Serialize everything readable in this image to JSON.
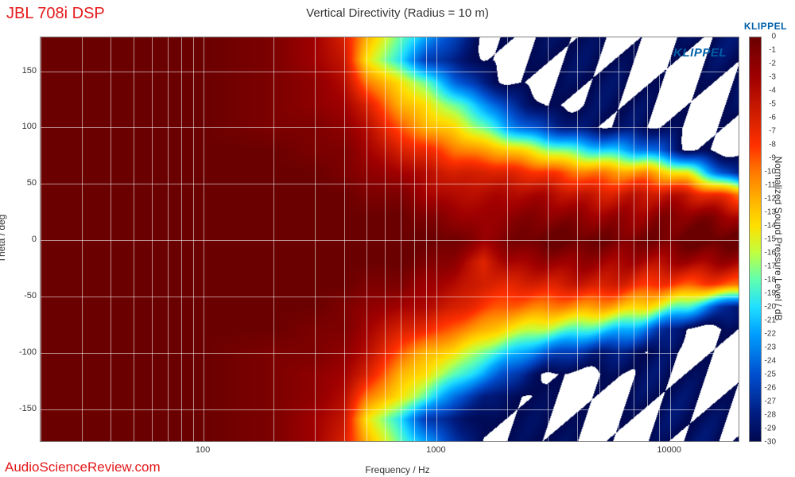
{
  "header": {
    "title_left": "JBL 708i DSP",
    "title_left_color": "#e41a1c",
    "title_center": "Vertical Directivity (Radius = 10 m)",
    "brand_right": "KLIPPEL",
    "brand_color": "#0060a8",
    "watermark_in_plot": "KLIPPEL"
  },
  "footer": {
    "text": "AudioScienceReview.com",
    "color": "#e41a1c"
  },
  "chart": {
    "type": "heatmap",
    "x_axis": {
      "label": "Frequency / Hz",
      "scale": "log",
      "min": 20,
      "max": 20000,
      "major_ticks": [
        100,
        1000,
        10000
      ],
      "minor_ticks": [
        20,
        30,
        40,
        50,
        60,
        70,
        80,
        90,
        200,
        300,
        400,
        500,
        600,
        700,
        800,
        900,
        2000,
        3000,
        4000,
        5000,
        6000,
        7000,
        8000,
        9000,
        20000
      ],
      "label_fontsize": 12,
      "tick_fontsize": 11
    },
    "y_axis": {
      "label": "Theta / deg",
      "scale": "linear",
      "min": -180,
      "max": 180,
      "ticks": [
        -150,
        -100,
        -50,
        0,
        50,
        100,
        150
      ],
      "label_fontsize": 12,
      "tick_fontsize": 11
    },
    "colorbar": {
      "label": "Normalized Sound Pressure Level / dB",
      "min": -30,
      "max": 0,
      "ticks": [
        0,
        -1,
        -2,
        -3,
        -4,
        -5,
        -6,
        -7,
        -8,
        -9,
        -10,
        -11,
        -12,
        -13,
        -14,
        -15,
        -16,
        -17,
        -18,
        -19,
        -20,
        -21,
        -22,
        -23,
        -24,
        -25,
        -26,
        -27,
        -28,
        -29,
        -30
      ],
      "stops": [
        {
          "v": 0,
          "c": "#6b0000"
        },
        {
          "v": -3,
          "c": "#a00000"
        },
        {
          "v": -6,
          "c": "#d62000"
        },
        {
          "v": -8,
          "c": "#ff3000"
        },
        {
          "v": -10,
          "c": "#ff7800"
        },
        {
          "v": -12,
          "c": "#ffb000"
        },
        {
          "v": -14,
          "c": "#ffe000"
        },
        {
          "v": -16,
          "c": "#c0ff40"
        },
        {
          "v": -18,
          "c": "#60ffb0"
        },
        {
          "v": -20,
          "c": "#20e0ff"
        },
        {
          "v": -22,
          "c": "#00a0ff"
        },
        {
          "v": -25,
          "c": "#0050d0"
        },
        {
          "v": -28,
          "c": "#001c80"
        },
        {
          "v": -30,
          "c": "#000850"
        }
      ],
      "label_fontsize": 12,
      "tick_fontsize": 10
    },
    "grid_color": "rgba(255,255,255,0.55)",
    "background_color": "#ffffff",
    "plot_border_color": "#808080",
    "series": {
      "description": "Normalized SPL (dB) vs angle at sampled frequencies. Angles span -180..180 deg in 20 deg steps.",
      "angles_deg": [
        -180,
        -160,
        -140,
        -120,
        -100,
        -80,
        -60,
        -40,
        -20,
        0,
        20,
        40,
        60,
        80,
        100,
        120,
        140,
        160,
        180
      ],
      "freqs_hz": [
        20,
        50,
        100,
        200,
        300,
        400,
        500,
        700,
        900,
        1200,
        1600,
        2000,
        3000,
        5000,
        8000,
        12000,
        20000
      ],
      "z_db": [
        [
          0,
          0,
          0,
          0,
          0,
          0,
          0,
          0,
          0,
          0,
          0,
          0,
          0,
          0,
          0,
          0,
          0,
          0,
          0
        ],
        [
          0,
          0,
          0,
          0,
          0,
          0,
          0,
          0,
          0,
          0,
          0,
          0,
          0,
          0,
          0,
          0,
          0,
          0,
          0
        ],
        [
          0,
          0,
          0,
          0,
          0,
          0,
          0,
          0,
          0,
          0,
          0,
          0,
          0,
          0,
          0,
          0,
          0,
          0,
          0
        ],
        [
          -1,
          -1,
          -1,
          -1,
          -1,
          0,
          0,
          0,
          0,
          0,
          0,
          0,
          0,
          0,
          -1,
          -1,
          -1,
          -1,
          -1
        ],
        [
          -3,
          -3,
          -2,
          -2,
          -1,
          -1,
          0,
          0,
          0,
          0,
          0,
          0,
          0,
          -1,
          -1,
          -2,
          -2,
          -3,
          -3
        ],
        [
          -6,
          -5,
          -4,
          -3,
          -2,
          -1,
          -1,
          0,
          0,
          0,
          0,
          0,
          -1,
          -1,
          -2,
          -3,
          -4,
          -5,
          -6
        ],
        [
          -12,
          -14,
          -10,
          -6,
          -4,
          -3,
          -2,
          -1,
          0,
          0,
          0,
          -1,
          -2,
          -3,
          -4,
          -6,
          -10,
          -14,
          -12
        ],
        [
          -18,
          -20,
          -14,
          -12,
          -9,
          -6,
          -3,
          -1,
          0,
          0,
          0,
          -1,
          -3,
          -6,
          -9,
          -12,
          -14,
          -20,
          -18
        ],
        [
          -22,
          -26,
          -18,
          -14,
          -12,
          -7,
          -4,
          -3,
          -1,
          0,
          -1,
          -3,
          -4,
          -7,
          -12,
          -14,
          -18,
          -26,
          -22
        ],
        [
          -26,
          -28,
          -24,
          -18,
          -14,
          -10,
          -6,
          -4,
          -2,
          0,
          -2,
          -4,
          -6,
          -10,
          -14,
          -18,
          -24,
          -28,
          -26
        ],
        [
          -30,
          -30,
          -28,
          -22,
          -18,
          -12,
          -8,
          -6,
          -6,
          -2,
          -3,
          -4,
          -6,
          -12,
          -18,
          -22,
          -28,
          -30,
          -30
        ],
        [
          -30,
          -30,
          -30,
          -26,
          -20,
          -14,
          -9,
          -6,
          -3,
          -1,
          -2,
          -4,
          -7,
          -13,
          -22,
          -26,
          -30,
          -30,
          -30
        ],
        [
          -30,
          -30,
          -30,
          -30,
          -24,
          -16,
          -10,
          -6,
          -3,
          0,
          -2,
          -4,
          -8,
          -16,
          -26,
          -30,
          -30,
          -30,
          -30
        ],
        [
          -30,
          -30,
          -30,
          -30,
          -28,
          -20,
          -12,
          -6,
          -3,
          0,
          -2,
          -5,
          -10,
          -20,
          -30,
          -30,
          -30,
          -30,
          -30
        ],
        [
          -30,
          -30,
          -30,
          -30,
          -30,
          -24,
          -14,
          -7,
          -3,
          0,
          -2,
          -5,
          -12,
          -24,
          -30,
          -30,
          -30,
          -30,
          -30
        ],
        [
          -30,
          -30,
          -30,
          -30,
          -30,
          -30,
          -18,
          -8,
          -3,
          0,
          -2,
          -6,
          -16,
          -30,
          -30,
          -30,
          -30,
          -30,
          -30
        ],
        [
          -30,
          -30,
          -30,
          -30,
          -30,
          -30,
          -30,
          -10,
          -4,
          0,
          -3,
          -9,
          -28,
          -30,
          -30,
          -30,
          -30,
          -30,
          -30
        ]
      ]
    }
  }
}
